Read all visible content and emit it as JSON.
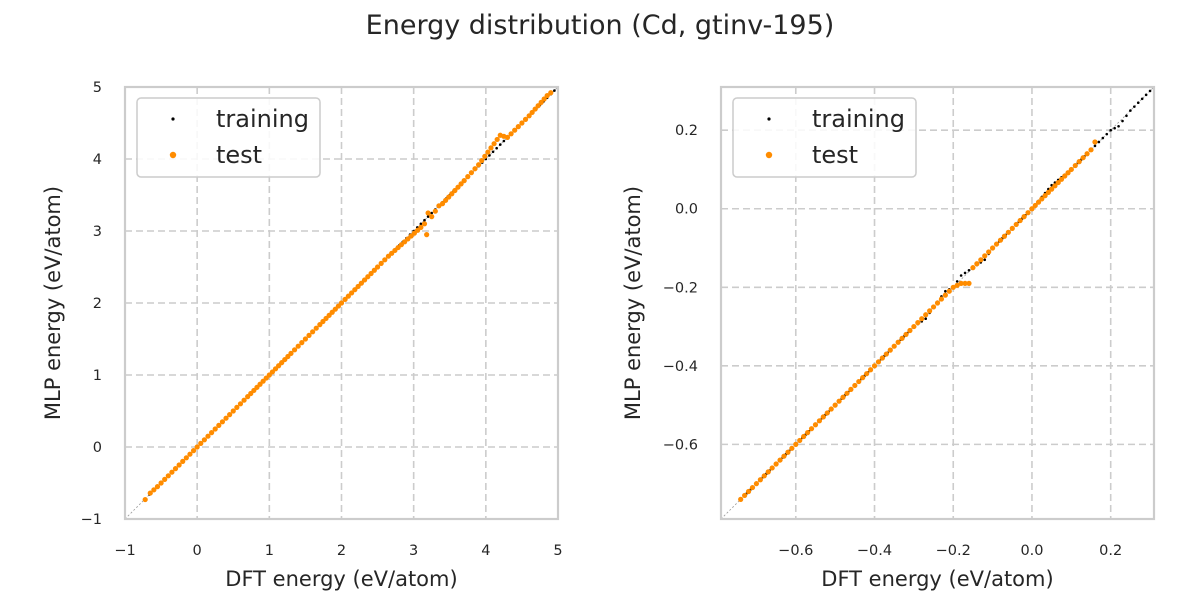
{
  "title": "Energy distribution (Cd, gtinv-195)",
  "colors": {
    "training": "#000000",
    "test": "#ff8c00",
    "grid": "#cccccc",
    "frame": "#cccccc"
  },
  "chart_data": [
    {
      "type": "scatter",
      "xlabel": "DFT energy (eV/atom)",
      "ylabel": "MLP energy (eV/atom)",
      "xlim": [
        -1,
        5
      ],
      "ylim": [
        -1,
        5
      ],
      "xticks": [
        -1,
        0,
        1,
        2,
        3,
        4,
        5
      ],
      "yticks": [
        -1,
        0,
        1,
        2,
        3,
        4,
        5
      ],
      "xtick_labels": [
        "−1",
        "0",
        "1",
        "2",
        "3",
        "4",
        "5"
      ],
      "ytick_labels": [
        "−1",
        "0",
        "1",
        "2",
        "3",
        "4",
        "5"
      ],
      "grid": true,
      "legend": "upper-left",
      "series": [
        {
          "name": "training",
          "color": "#000000",
          "points": [
            [
              -0.72,
              -0.72
            ],
            [
              -0.6,
              -0.6
            ],
            [
              -0.4,
              -0.4
            ],
            [
              -0.2,
              -0.2
            ],
            [
              0.0,
              0.0
            ],
            [
              0.2,
              0.2
            ],
            [
              0.4,
              0.4
            ],
            [
              0.6,
              0.6
            ],
            [
              0.8,
              0.8
            ],
            [
              1.0,
              1.0
            ],
            [
              1.2,
              1.2
            ],
            [
              1.4,
              1.4
            ],
            [
              1.6,
              1.6
            ],
            [
              1.8,
              1.8
            ],
            [
              2.0,
              2.0
            ],
            [
              2.2,
              2.2
            ],
            [
              2.4,
              2.4
            ],
            [
              2.6,
              2.6
            ],
            [
              2.8,
              2.8
            ],
            [
              3.0,
              3.0
            ],
            [
              3.2,
              3.2
            ],
            [
              3.4,
              3.4
            ],
            [
              3.6,
              3.6
            ],
            [
              3.8,
              3.8
            ],
            [
              4.0,
              4.0
            ],
            [
              4.2,
              4.2
            ],
            [
              4.4,
              4.4
            ],
            [
              4.6,
              4.6
            ],
            [
              4.8,
              4.8
            ],
            [
              4.95,
              4.95
            ]
          ]
        },
        {
          "name": "test",
          "color": "#ff8c00",
          "points": [
            [
              -0.72,
              -0.73
            ],
            [
              -0.65,
              -0.64
            ],
            [
              -0.55,
              -0.55
            ],
            [
              -0.45,
              -0.45
            ],
            [
              -0.35,
              -0.35
            ],
            [
              -0.25,
              -0.25
            ],
            [
              -0.15,
              -0.15
            ],
            [
              -0.05,
              -0.05
            ],
            [
              0.05,
              0.05
            ],
            [
              0.15,
              0.15
            ],
            [
              0.3,
              0.3
            ],
            [
              0.5,
              0.5
            ],
            [
              0.7,
              0.7
            ],
            [
              1.0,
              1.0
            ],
            [
              1.3,
              1.3
            ],
            [
              1.5,
              1.5
            ],
            [
              1.7,
              1.7
            ],
            [
              2.0,
              2.0
            ],
            [
              2.05,
              2.05
            ],
            [
              2.5,
              2.5
            ],
            [
              2.65,
              2.65
            ],
            [
              3.1,
              3.05
            ],
            [
              3.15,
              3.1
            ],
            [
              3.18,
              2.95
            ],
            [
              3.2,
              3.25
            ],
            [
              3.25,
              3.2
            ],
            [
              3.35,
              3.35
            ],
            [
              3.4,
              3.38
            ],
            [
              3.7,
              3.7
            ],
            [
              3.9,
              3.92
            ],
            [
              4.2,
              4.33
            ],
            [
              4.3,
              4.3
            ],
            [
              4.45,
              4.45
            ],
            [
              4.6,
              4.6
            ],
            [
              4.85,
              4.88
            ],
            [
              4.9,
              4.92
            ]
          ]
        }
      ]
    },
    {
      "type": "scatter",
      "xlabel": "DFT energy (eV/atom)",
      "ylabel": "MLP energy (eV/atom)",
      "xlim": [
        -0.79,
        0.31
      ],
      "ylim": [
        -0.79,
        0.31
      ],
      "xticks": [
        -0.6,
        -0.4,
        -0.2,
        0.0,
        0.2
      ],
      "yticks": [
        -0.6,
        -0.4,
        -0.2,
        0.0,
        0.2
      ],
      "xtick_labels": [
        "−0.6",
        "−0.4",
        "−0.2",
        "0.0",
        "0.2"
      ],
      "ytick_labels": [
        "−0.6",
        "−0.4",
        "−0.2",
        "0.0",
        "0.2"
      ],
      "grid": true,
      "legend": "upper-left",
      "series": [
        {
          "name": "training",
          "color": "#000000",
          "points": [
            [
              -0.74,
              -0.74
            ],
            [
              -0.7,
              -0.7
            ],
            [
              -0.65,
              -0.65
            ],
            [
              -0.6,
              -0.6
            ],
            [
              -0.55,
              -0.55
            ],
            [
              -0.5,
              -0.5
            ],
            [
              -0.45,
              -0.45
            ],
            [
              -0.4,
              -0.4
            ],
            [
              -0.35,
              -0.35
            ],
            [
              -0.3,
              -0.3
            ],
            [
              -0.27,
              -0.28
            ],
            [
              -0.25,
              -0.25
            ],
            [
              -0.22,
              -0.21
            ],
            [
              -0.2,
              -0.2
            ],
            [
              -0.18,
              -0.17
            ],
            [
              -0.15,
              -0.15
            ],
            [
              -0.12,
              -0.13
            ],
            [
              -0.1,
              -0.1
            ],
            [
              -0.05,
              -0.05
            ],
            [
              0.0,
              0.0
            ],
            [
              0.05,
              0.06
            ],
            [
              0.1,
              0.1
            ],
            [
              0.15,
              0.15
            ],
            [
              0.18,
              0.18
            ],
            [
              0.2,
              0.2
            ],
            [
              0.22,
              0.21
            ],
            [
              0.25,
              0.25
            ],
            [
              0.28,
              0.28
            ],
            [
              0.3,
              0.3
            ]
          ]
        },
        {
          "name": "test",
          "color": "#ff8c00",
          "points": [
            [
              -0.74,
              -0.74
            ],
            [
              -0.72,
              -0.72
            ],
            [
              -0.7,
              -0.7
            ],
            [
              -0.68,
              -0.68
            ],
            [
              -0.65,
              -0.65
            ],
            [
              -0.62,
              -0.62
            ],
            [
              -0.6,
              -0.6
            ],
            [
              -0.57,
              -0.57
            ],
            [
              -0.55,
              -0.55
            ],
            [
              -0.52,
              -0.52
            ],
            [
              -0.5,
              -0.5
            ],
            [
              -0.47,
              -0.47
            ],
            [
              -0.45,
              -0.45
            ],
            [
              -0.42,
              -0.42
            ],
            [
              -0.4,
              -0.4
            ],
            [
              -0.38,
              -0.38
            ],
            [
              -0.35,
              -0.35
            ],
            [
              -0.32,
              -0.32
            ],
            [
              -0.3,
              -0.3
            ],
            [
              -0.28,
              -0.28
            ],
            [
              -0.25,
              -0.25
            ],
            [
              -0.22,
              -0.22
            ],
            [
              -0.2,
              -0.2
            ],
            [
              -0.18,
              -0.19
            ],
            [
              -0.16,
              -0.19
            ],
            [
              -0.15,
              -0.15
            ],
            [
              -0.12,
              -0.12
            ],
            [
              -0.1,
              -0.1
            ],
            [
              -0.08,
              -0.08
            ],
            [
              -0.05,
              -0.05
            ],
            [
              -0.02,
              -0.02
            ],
            [
              0.0,
              0.0
            ],
            [
              0.05,
              0.05
            ],
            [
              0.1,
              0.1
            ],
            [
              0.12,
              0.12
            ],
            [
              0.15,
              0.15
            ],
            [
              0.16,
              0.17
            ]
          ]
        }
      ]
    }
  ]
}
